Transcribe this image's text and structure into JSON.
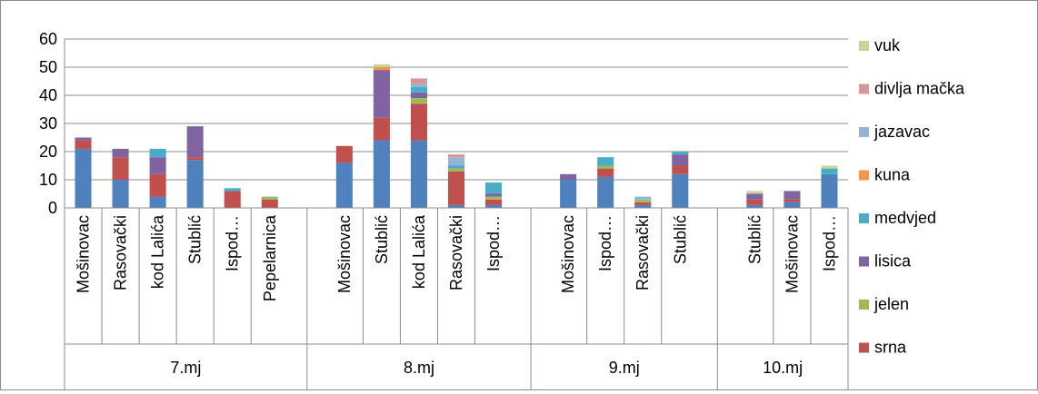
{
  "chart_data": {
    "type": "bar",
    "stacked": true,
    "ylim": [
      0,
      60
    ],
    "yticks": [
      0,
      10,
      20,
      30,
      40,
      50,
      60
    ],
    "grid": true,
    "legend_position": "right",
    "groups": [
      {
        "label": "7.mj",
        "categories": [
          "Mošinovac",
          "Rasovački",
          "kod Lalića",
          "Stublić",
          "Ispod…",
          "Pepelarnica"
        ]
      },
      {
        "label": "8.mj",
        "categories": [
          "Mošinovac",
          "Stublić",
          "kod Lalića",
          "Rasovački",
          "Ispod…"
        ]
      },
      {
        "label": "9.mj",
        "categories": [
          "Mošinovac",
          "Ispod…",
          "Rasovački",
          "Stublić"
        ]
      },
      {
        "label": "10.mj",
        "categories": [
          "Stublić",
          "Mošinovac",
          "Ispod…"
        ]
      }
    ],
    "series": [
      {
        "name": "",
        "color": "#4f81bd",
        "values": [
          21,
          10,
          4,
          17,
          0,
          0,
          16,
          24,
          24,
          1,
          1,
          10,
          11,
          1,
          12,
          1,
          2,
          12
        ]
      },
      {
        "name": "srna",
        "color": "#c0504d",
        "values": [
          3,
          8,
          8,
          1,
          6,
          3,
          6,
          8,
          13,
          12,
          2,
          0,
          3,
          1,
          3,
          2,
          1,
          0
        ]
      },
      {
        "name": "jelen",
        "color": "#9bbb59",
        "values": [
          0,
          0,
          0,
          0,
          0,
          1,
          0,
          0,
          2,
          1,
          1,
          0,
          1,
          1,
          0,
          0,
          0,
          0
        ]
      },
      {
        "name": "lisica",
        "color": "#8064a2",
        "values": [
          1,
          3,
          6,
          11,
          0,
          0,
          0,
          17,
          2,
          0,
          1,
          2,
          0,
          0,
          4,
          2,
          3,
          0
        ]
      },
      {
        "name": "medvjed",
        "color": "#4bacc6",
        "values": [
          0,
          0,
          3,
          0,
          1,
          0,
          0,
          0,
          2,
          1,
          4,
          0,
          3,
          0,
          1,
          0,
          0,
          2
        ]
      },
      {
        "name": "kuna",
        "color": "#f79646",
        "values": [
          0,
          0,
          0,
          0,
          0,
          0,
          0,
          1,
          0,
          0,
          0,
          0,
          0,
          0,
          0,
          0,
          0,
          0
        ]
      },
      {
        "name": "jazavac",
        "color": "#95b3d7",
        "values": [
          0,
          0,
          0,
          0,
          0,
          0,
          0,
          0,
          1,
          3,
          0,
          0,
          0,
          1,
          0,
          0,
          0,
          0
        ]
      },
      {
        "name": "divlja mačka",
        "color": "#d99694",
        "values": [
          0,
          0,
          0,
          0,
          0,
          0,
          0,
          0,
          2,
          1,
          0,
          0,
          0,
          0,
          0,
          0,
          0,
          0
        ]
      },
      {
        "name": "vuk",
        "color": "#c3d69b",
        "values": [
          0,
          0,
          0,
          0,
          0,
          0,
          0,
          1,
          0,
          0,
          0,
          0,
          0,
          0,
          0,
          1,
          0,
          1
        ]
      }
    ]
  }
}
